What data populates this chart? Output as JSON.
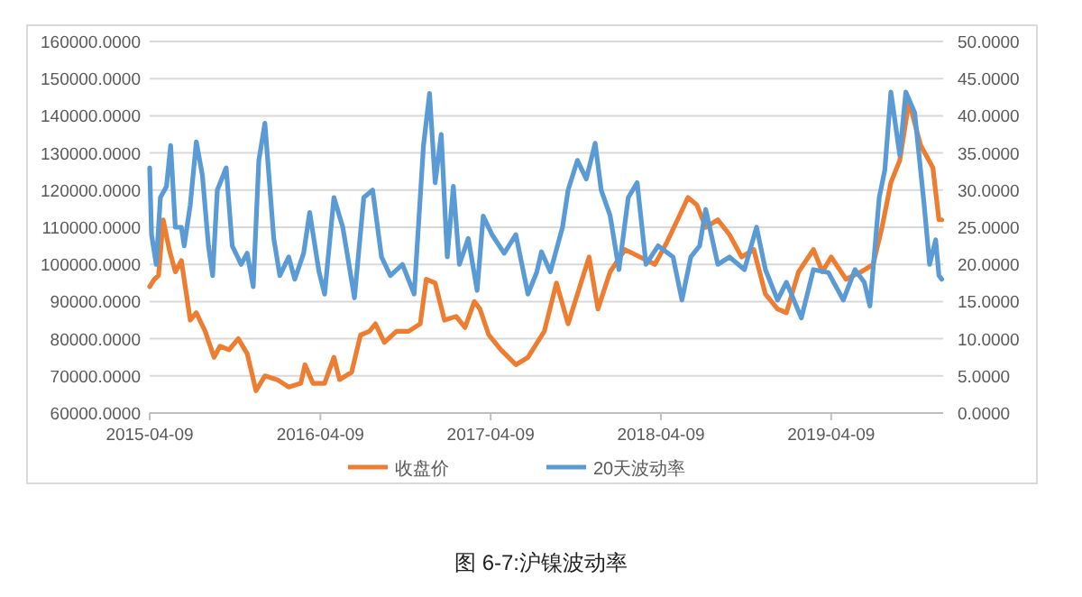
{
  "chart_data": {
    "type": "line",
    "title": "图 6-7:沪镍波动率",
    "xlim": [
      "2015-04-09",
      "2019-12-05"
    ],
    "xticks": [
      "2015-04-09",
      "2016-04-09",
      "2017-04-09",
      "2018-04-09",
      "2019-04-09"
    ],
    "ylim": [
      60000,
      160000
    ],
    "yticks": [
      {
        "value": 60000,
        "label": "60000.0000"
      },
      {
        "value": 70000,
        "label": "70000.0000"
      },
      {
        "value": 80000,
        "label": "80000.0000"
      },
      {
        "value": 90000,
        "label": "90000.0000"
      },
      {
        "value": 100000,
        "label": "100000.0000"
      },
      {
        "value": 110000,
        "label": "110000.0000"
      },
      {
        "value": 120000,
        "label": "120000.0000"
      },
      {
        "value": 130000,
        "label": "130000.0000"
      },
      {
        "value": 140000,
        "label": "140000.0000"
      },
      {
        "value": 150000,
        "label": "150000.0000"
      },
      {
        "value": 160000,
        "label": "160000.0000"
      }
    ],
    "y2lim": [
      0,
      50
    ],
    "y2ticks": [
      {
        "value": 0,
        "label": "0.0000"
      },
      {
        "value": 5,
        "label": "5.0000"
      },
      {
        "value": 10,
        "label": "10.0000"
      },
      {
        "value": 15,
        "label": "15.0000"
      },
      {
        "value": 20,
        "label": "20.0000"
      },
      {
        "value": 25,
        "label": "25.0000"
      },
      {
        "value": 30,
        "label": "30.0000"
      },
      {
        "value": 35,
        "label": "35.0000"
      },
      {
        "value": 40,
        "label": "40.0000"
      },
      {
        "value": 45,
        "label": "45.0000"
      },
      {
        "value": 50,
        "label": "50.0000"
      }
    ],
    "grid": "y",
    "legend": "bottom",
    "marker": "none",
    "line_style": "solid",
    "series": [
      {
        "name": "收盘价",
        "color": "#ed7d31",
        "x": [
          "2015-04-09",
          "2015-04-19",
          "2015-04-28",
          "2015-05-08",
          "2015-05-21",
          "2015-06-03",
          "2015-06-16",
          "2015-07-05",
          "2015-07-18",
          "2015-08-06",
          "2015-08-25",
          "2015-09-07",
          "2015-09-26",
          "2015-10-16",
          "2015-11-04",
          "2015-11-23",
          "2015-12-12",
          "2016-01-07",
          "2016-02-01",
          "2016-02-27",
          "2016-03-07",
          "2016-03-24",
          "2016-04-18",
          "2016-05-08",
          "2016-05-20",
          "2016-06-15",
          "2016-07-04",
          "2016-07-23",
          "2016-08-05",
          "2016-08-24",
          "2016-09-19",
          "2016-10-15",
          "2016-11-09",
          "2016-11-22",
          "2016-12-11",
          "2016-12-31",
          "2017-01-25",
          "2017-02-13",
          "2017-03-05",
          "2017-03-17",
          "2017-04-05",
          "2017-05-01",
          "2017-06-02",
          "2017-06-28",
          "2017-08-02",
          "2017-08-28",
          "2017-09-22",
          "2017-10-12",
          "2017-11-06",
          "2017-11-25",
          "2017-12-21",
          "2018-01-22",
          "2018-02-23",
          "2018-03-27",
          "2018-04-22",
          "2018-06-06",
          "2018-06-25",
          "2018-07-14",
          "2018-08-09",
          "2018-09-03",
          "2018-09-29",
          "2018-10-25",
          "2018-11-19",
          "2018-12-15",
          "2019-01-03",
          "2019-01-29",
          "2019-03-02",
          "2019-03-21",
          "2019-04-09",
          "2019-05-11",
          "2019-06-12",
          "2019-07-08",
          "2019-07-27",
          "2019-08-15",
          "2019-09-03",
          "2019-09-23",
          "2019-10-05",
          "2019-10-18",
          "2019-11-13",
          "2019-11-26",
          "2019-12-02"
        ],
        "values": [
          94000,
          96000,
          97000,
          112000,
          104000,
          98000,
          101000,
          85000,
          87000,
          82000,
          75000,
          78000,
          77000,
          80000,
          76000,
          66000,
          70000,
          69000,
          67000,
          68000,
          73000,
          68000,
          68000,
          75000,
          69000,
          71000,
          81000,
          82000,
          84000,
          79000,
          82000,
          82000,
          84000,
          96000,
          95000,
          85000,
          86000,
          83000,
          90000,
          88000,
          81000,
          77000,
          73000,
          75000,
          82000,
          95000,
          84000,
          92000,
          102000,
          88000,
          98000,
          104000,
          102000,
          100000,
          106000,
          118000,
          116000,
          110000,
          112000,
          108000,
          102000,
          104000,
          92000,
          88000,
          87000,
          98000,
          104000,
          98000,
          102000,
          96000,
          98000,
          100000,
          110000,
          122000,
          128000,
          144000,
          138000,
          132000,
          126000,
          112000,
          112000
        ]
      },
      {
        "name": "20天波动率",
        "color": "#5b9bd5",
        "axis": "y2",
        "x": [
          "2015-04-09",
          "2015-04-13",
          "2015-04-23",
          "2015-05-02",
          "2015-05-15",
          "2015-05-24",
          "2015-06-03",
          "2015-06-16",
          "2015-06-22",
          "2015-07-05",
          "2015-07-18",
          "2015-07-31",
          "2015-08-13",
          "2015-08-22",
          "2015-09-01",
          "2015-09-20",
          "2015-10-03",
          "2015-10-22",
          "2015-11-04",
          "2015-11-17",
          "2015-11-29",
          "2015-12-12",
          "2015-12-31",
          "2016-01-13",
          "2016-02-01",
          "2016-02-14",
          "2016-03-04",
          "2016-03-17",
          "2016-04-06",
          "2016-04-18",
          "2016-05-08",
          "2016-05-27",
          "2016-06-21",
          "2016-07-11",
          "2016-07-30",
          "2016-08-18",
          "2016-09-06",
          "2016-10-02",
          "2016-10-27",
          "2016-11-16",
          "2016-11-29",
          "2016-12-11",
          "2016-12-24",
          "2017-01-06",
          "2017-01-19",
          "2017-02-01",
          "2017-02-20",
          "2017-03-11",
          "2017-03-24",
          "2017-04-12",
          "2017-05-08",
          "2017-06-02",
          "2017-06-28",
          "2017-07-17",
          "2017-07-27",
          "2017-08-15",
          "2017-09-10",
          "2017-09-22",
          "2017-10-12",
          "2017-10-31",
          "2017-11-19",
          "2017-12-02",
          "2017-12-21",
          "2018-01-09",
          "2018-01-29",
          "2018-02-17",
          "2018-03-08",
          "2018-04-03",
          "2018-05-05",
          "2018-05-24",
          "2018-06-12",
          "2018-07-01",
          "2018-07-14",
          "2018-08-09",
          "2018-09-03",
          "2018-10-05",
          "2018-10-31",
          "2018-11-19",
          "2018-12-15",
          "2019-01-03",
          "2019-02-04",
          "2019-03-02",
          "2019-04-03",
          "2019-05-05",
          "2019-05-30",
          "2019-06-19",
          "2019-07-01",
          "2019-07-21",
          "2019-08-02",
          "2019-08-15",
          "2019-09-03",
          "2019-09-16",
          "2019-10-05",
          "2019-10-25",
          "2019-11-06",
          "2019-11-19",
          "2019-11-26",
          "2019-12-02"
        ],
        "values": [
          33,
          24,
          20,
          29,
          30.5,
          36,
          25,
          25,
          22.5,
          28,
          36.5,
          32,
          22.5,
          18.5,
          30,
          33,
          22.5,
          20,
          21.5,
          17,
          34,
          39,
          23.5,
          18.5,
          21,
          18,
          21.5,
          27,
          19,
          16,
          29,
          25,
          15.5,
          29,
          30,
          21,
          18.5,
          20,
          16,
          36,
          43,
          31,
          37.5,
          21,
          30.5,
          20,
          23.5,
          16.5,
          26.5,
          24,
          21.5,
          24,
          16,
          19,
          21.7,
          19,
          25,
          30,
          34,
          31.5,
          36.3,
          30,
          26.6,
          19.3,
          29,
          31,
          20,
          22.5,
          21,
          15.2,
          21,
          22.5,
          27.4,
          20,
          21,
          19.3,
          25,
          19.3,
          15.2,
          17.6,
          12.8,
          19.3,
          18.9,
          15.2,
          19.3,
          17.6,
          14.4,
          29,
          32.7,
          43.2,
          34.7,
          43.2,
          40.4,
          28.2,
          20,
          23.3,
          18.5,
          18
        ]
      }
    ]
  }
}
